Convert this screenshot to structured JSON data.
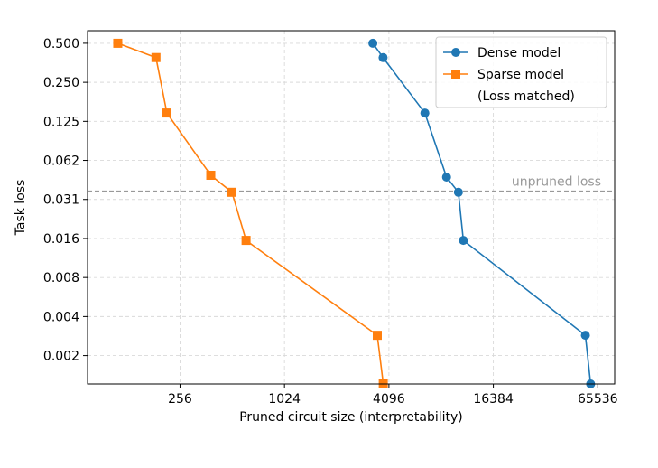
{
  "chart_data": {
    "type": "line",
    "xlabel": "Pruned circuit size (interpretability)",
    "ylabel": "Task loss",
    "x_scale": "log2",
    "y_scale": "log2",
    "xlim": [
      75,
      82000
    ],
    "ylim": [
      0.00118,
      0.625
    ],
    "x_ticks": [
      256,
      1024,
      4096,
      16384,
      65536
    ],
    "x_tick_labels": [
      "256",
      "1024",
      "4096",
      "16384",
      "65536"
    ],
    "y_ticks": [
      0.5,
      0.25,
      0.125,
      0.0625,
      0.03125,
      0.015625,
      0.0078125,
      0.00390625,
      0.001953125
    ],
    "y_tick_labels": [
      "0.500",
      "0.250",
      "0.125",
      "0.062",
      "0.031",
      "0.016",
      "0.008",
      "0.004",
      "0.002"
    ],
    "grid": true,
    "legend_position": "top-right",
    "series": [
      {
        "name": "Dense model",
        "color": "#1f77b4",
        "marker": "circle",
        "x": [
          3310,
          3790,
          6600,
          8800,
          10300,
          11000,
          55600,
          59600
        ],
        "y": [
          0.5,
          0.388,
          0.145,
          0.0465,
          0.0355,
          0.0151,
          0.0028,
          0.00118
        ]
      },
      {
        "name": "Sparse model",
        "color": "#ff7f0e",
        "marker": "square",
        "x": [
          112,
          186,
          215,
          385,
          510,
          615,
          3510,
          3800
        ],
        "y": [
          0.5,
          0.388,
          0.145,
          0.048,
          0.0355,
          0.0151,
          0.0028,
          0.00118
        ]
      }
    ],
    "legend_extra": "(Loss matched)",
    "reference_line": {
      "label": "unpruned loss",
      "y": 0.0362,
      "color": "#999999"
    }
  }
}
